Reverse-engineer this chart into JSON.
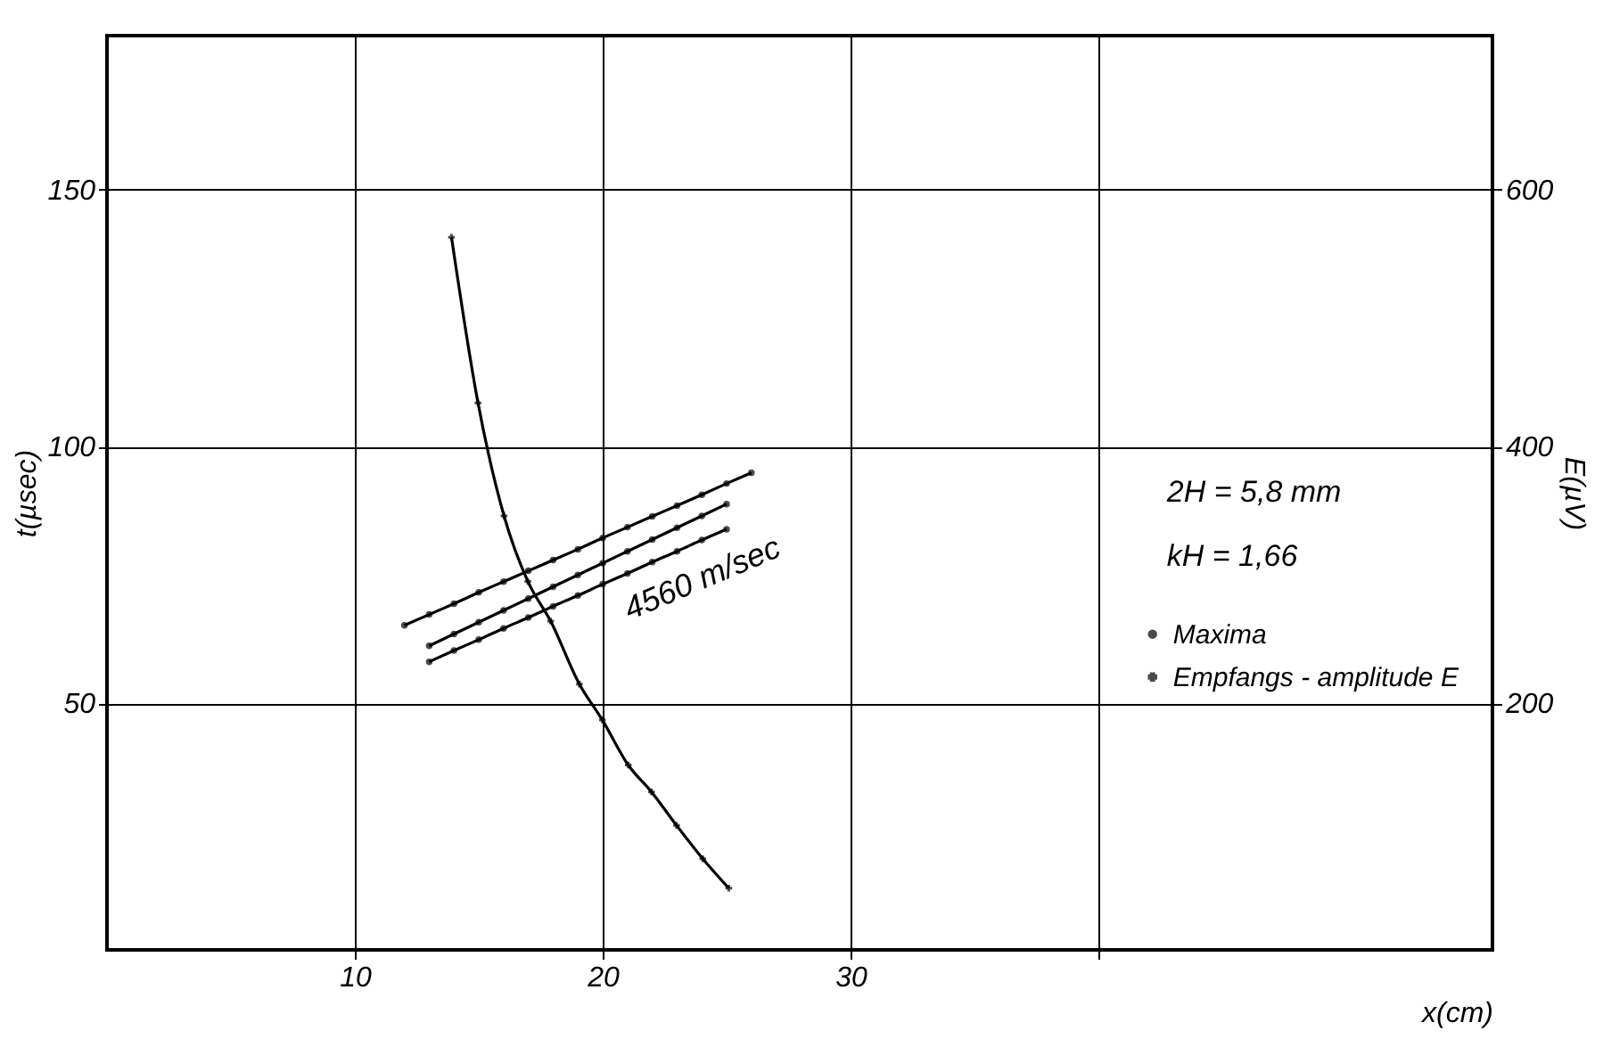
{
  "chart_data": {
    "type": "line",
    "xlabel": "x(cm)",
    "ylabel": "t(µsec)",
    "y2label": "E(µV)",
    "xlim": [
      0,
      55.9
    ],
    "xticks": [
      10,
      20,
      30,
      {
        "value": 40,
        "label": null
      }
    ],
    "ylim": [
      2,
      180
    ],
    "yticks": [
      50,
      100,
      150
    ],
    "y2lim": [
      8,
      720
    ],
    "y2ticks": [
      200,
      400,
      600
    ],
    "grid": true,
    "legend": "right",
    "annotations": [
      "2H = 5,8 mm",
      "kH = 1,66",
      "4560 m/sec"
    ],
    "series": [
      {
        "name": "Maxima",
        "color": "#000000",
        "marker": "circle",
        "x": [
          12,
          13,
          14,
          15,
          16,
          17,
          18,
          19,
          20,
          21,
          22,
          23,
          24,
          25,
          26
        ],
        "values": [
          65.2,
          67.3,
          69.4,
          71.6,
          73.7,
          75.8,
          77.9,
          80.0,
          82.2,
          84.3,
          86.4,
          88.5,
          90.6,
          92.8,
          94.9
        ]
      },
      {
        "color": "#000000",
        "marker": "circle",
        "x": [
          13,
          14,
          15,
          16,
          17,
          18,
          19,
          20,
          21,
          22,
          23,
          24,
          25
        ],
        "values": [
          61.2,
          63.5,
          65.8,
          68.1,
          70.4,
          72.7,
          75.0,
          77.3,
          79.6,
          81.9,
          84.2,
          86.5,
          88.8
        ]
      },
      {
        "color": "#000000",
        "marker": "circle",
        "x": [
          13,
          14,
          15,
          16,
          17,
          18,
          19,
          20,
          21,
          22,
          23,
          24,
          25
        ],
        "values": [
          58.1,
          60.3,
          62.4,
          64.6,
          66.7,
          68.9,
          71.0,
          73.2,
          75.3,
          77.5,
          79.6,
          81.8,
          83.9
        ]
      },
      {
        "name": "Empfangs - amplitude E",
        "color": "#000000",
        "marker": "cross",
        "axis": "y2",
        "x": [
          13.9,
          14.97,
          16.02,
          16.98,
          17.9,
          19.06,
          19.99,
          21.03,
          21.97,
          22.98,
          24.04,
          25.09
        ],
        "values": [
          563,
          434,
          346,
          295,
          264,
          215,
          187,
          152,
          131,
          105,
          79,
          56
        ]
      }
    ]
  }
}
